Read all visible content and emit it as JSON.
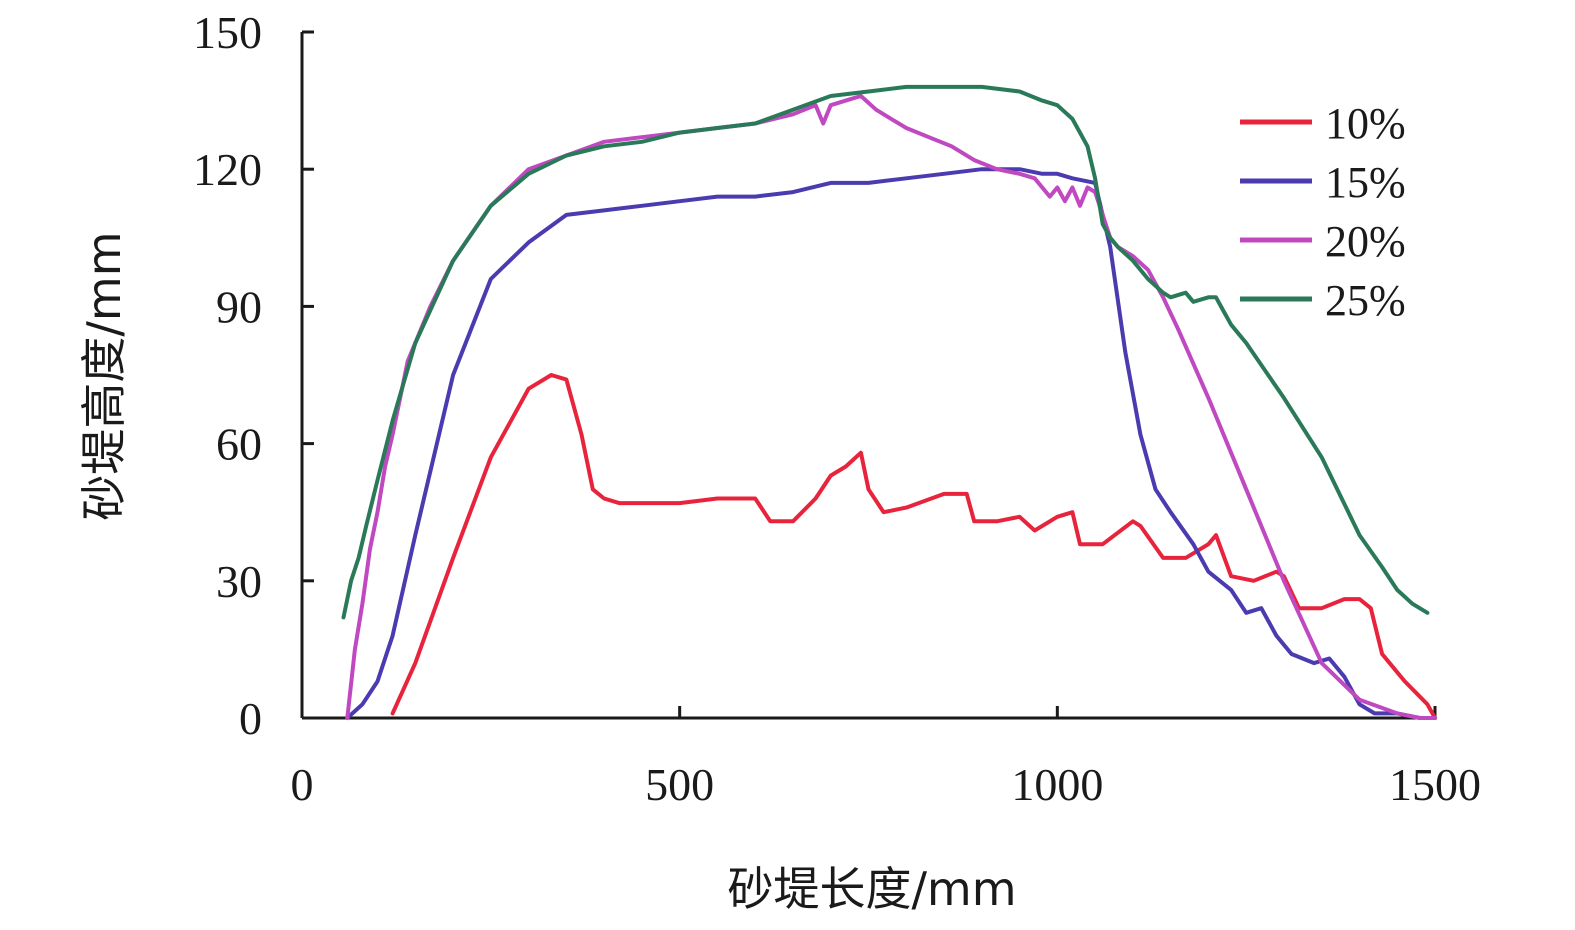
{
  "chart_data": {
    "type": "line",
    "xlabel": "砂堤长度/mm",
    "ylabel": "砂堤高度/mm",
    "xlim": [
      0,
      1500
    ],
    "ylim": [
      0,
      150
    ],
    "xticks": [
      "0",
      "500",
      "1000",
      "1500"
    ],
    "yticks": [
      "0",
      "30",
      "60",
      "90",
      "120",
      "150"
    ],
    "grid": false,
    "legend_position": "top-right",
    "series": [
      {
        "name": "10%",
        "color": "#e8243c",
        "x": [
          120,
          150,
          200,
          250,
          300,
          330,
          350,
          370,
          385,
          400,
          420,
          450,
          500,
          550,
          600,
          620,
          650,
          680,
          700,
          720,
          740,
          750,
          770,
          800,
          850,
          880,
          890,
          920,
          950,
          970,
          1000,
          1020,
          1030,
          1060,
          1100,
          1110,
          1140,
          1170,
          1200,
          1210,
          1230,
          1260,
          1290,
          1300,
          1320,
          1350,
          1380,
          1400,
          1415,
          1430,
          1460,
          1490,
          1500
        ],
        "y": [
          1,
          12,
          35,
          57,
          72,
          75,
          74,
          62,
          50,
          48,
          47,
          47,
          47,
          48,
          48,
          43,
          43,
          48,
          53,
          55,
          58,
          50,
          45,
          46,
          49,
          49,
          43,
          43,
          44,
          41,
          44,
          45,
          38,
          38,
          43,
          42,
          35,
          35,
          38,
          40,
          31,
          30,
          32,
          31,
          24,
          24,
          26,
          26,
          24,
          14,
          8,
          3,
          0
        ]
      },
      {
        "name": "15%",
        "color": "#4a3bb0",
        "x": [
          60,
          80,
          100,
          120,
          150,
          200,
          250,
          300,
          350,
          400,
          450,
          500,
          550,
          600,
          650,
          700,
          750,
          800,
          850,
          900,
          950,
          980,
          1000,
          1020,
          1050,
          1070,
          1090,
          1110,
          1130,
          1150,
          1180,
          1200,
          1230,
          1250,
          1270,
          1290,
          1310,
          1340,
          1360,
          1380,
          1400,
          1420,
          1450,
          1480,
          1500
        ],
        "y": [
          0,
          3,
          8,
          18,
          40,
          75,
          96,
          104,
          110,
          111,
          112,
          113,
          114,
          114,
          115,
          117,
          117,
          118,
          119,
          120,
          120,
          119,
          119,
          118,
          117,
          103,
          80,
          62,
          50,
          45,
          38,
          32,
          28,
          23,
          24,
          18,
          14,
          12,
          13,
          9,
          3,
          1,
          1,
          0,
          0
        ]
      },
      {
        "name": "20%",
        "color": "#c048c0",
        "x": [
          60,
          70,
          80,
          90,
          100,
          110,
          120,
          140,
          170,
          200,
          250,
          300,
          350,
          400,
          450,
          500,
          550,
          600,
          650,
          680,
          690,
          700,
          720,
          740,
          760,
          780,
          800,
          830,
          860,
          890,
          920,
          950,
          970,
          990,
          1000,
          1010,
          1020,
          1030,
          1040,
          1050,
          1060,
          1070,
          1080,
          1100,
          1120,
          1140,
          1160,
          1200,
          1250,
          1300,
          1350,
          1400,
          1450,
          1480,
          1500
        ],
        "y": [
          0,
          15,
          25,
          37,
          45,
          55,
          62,
          78,
          90,
          100,
          112,
          120,
          123,
          126,
          127,
          128,
          129,
          130,
          132,
          134,
          130,
          134,
          135,
          136,
          133,
          131,
          129,
          127,
          125,
          122,
          120,
          119,
          118,
          114,
          116,
          113,
          116,
          112,
          116,
          115,
          110,
          105,
          103,
          101,
          98,
          92,
          85,
          70,
          50,
          30,
          12,
          4,
          1,
          0,
          0
        ]
      },
      {
        "name": "25%",
        "color": "#2a7a5a",
        "x": [
          55,
          65,
          75,
          85,
          100,
          120,
          150,
          200,
          250,
          300,
          350,
          400,
          450,
          500,
          550,
          600,
          650,
          700,
          750,
          800,
          850,
          900,
          950,
          980,
          1000,
          1020,
          1040,
          1050,
          1060,
          1070,
          1080,
          1100,
          1120,
          1140,
          1150,
          1170,
          1180,
          1200,
          1210,
          1220,
          1230,
          1250,
          1300,
          1350,
          1400,
          1430,
          1450,
          1470,
          1490
        ],
        "y": [
          22,
          30,
          35,
          42,
          52,
          65,
          82,
          100,
          112,
          119,
          123,
          125,
          126,
          128,
          129,
          130,
          133,
          136,
          137,
          138,
          138,
          138,
          137,
          135,
          134,
          131,
          125,
          118,
          108,
          105,
          103,
          100,
          96,
          93,
          92,
          93,
          91,
          92,
          92,
          89,
          86,
          82,
          70,
          57,
          40,
          33,
          28,
          25,
          23
        ]
      }
    ]
  }
}
